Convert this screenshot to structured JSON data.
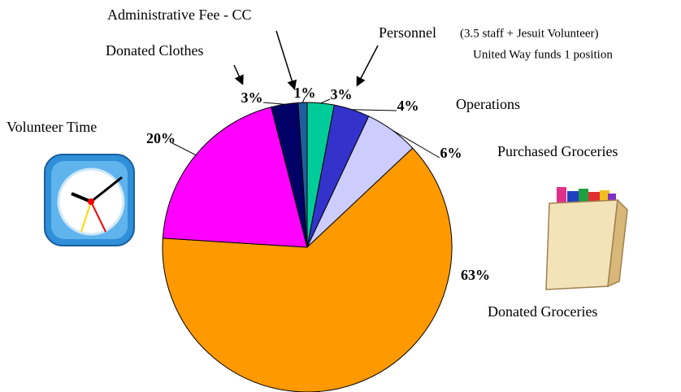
{
  "chart_data": {
    "type": "pie",
    "categories": [
      "Personnel",
      "Operations",
      "Purchased Groceries",
      "Donated Groceries",
      "Volunteer Time",
      "Donated Clothes",
      "Administrative Fee - CC"
    ],
    "values": [
      3,
      4,
      6,
      63,
      20,
      3,
      1
    ],
    "value_labels": [
      "3%",
      "4%",
      "6%",
      "63%",
      "20%",
      "3%",
      "1%"
    ],
    "colors": [
      "#00cc99",
      "#3333cc",
      "#ccccff",
      "#ff9900",
      "#ff00ff",
      "#000066",
      "#1f5fa0"
    ],
    "annotations": [
      "(3.5 staff + Jesuit Volunteer)",
      "United Way funds 1 position"
    ]
  }
}
